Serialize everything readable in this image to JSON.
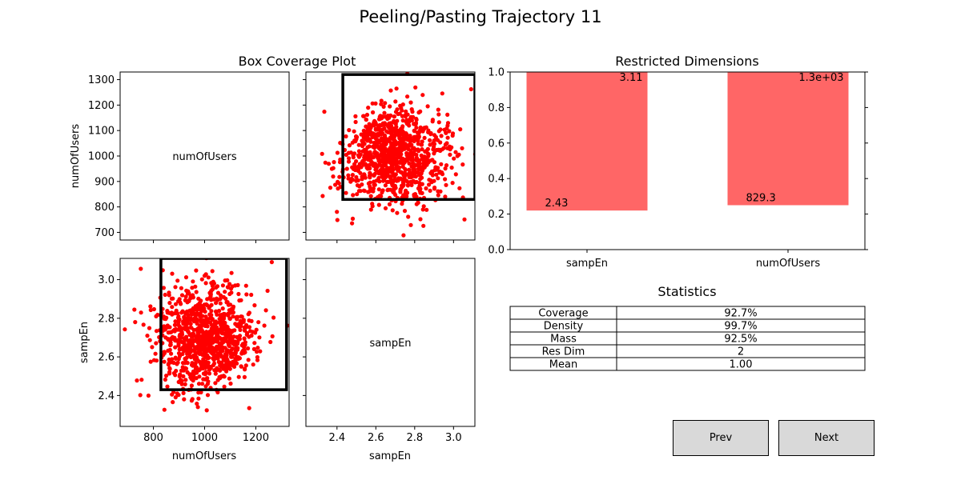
{
  "figure": {
    "title": "Peeling/Pasting Trajectory 11"
  },
  "buttons": {
    "prev_label": "Prev",
    "next_label": "Next"
  },
  "colors": {
    "points": "#ff0000",
    "bars": "#ff6666",
    "box": "#000000",
    "button_bg": "#d9d9d9"
  },
  "chart_data": [
    {
      "type": "scatter",
      "title": "Box Coverage Plot",
      "panels": [
        {
          "kind": "label",
          "text": "numOfUsers",
          "ylabel": "numOfUsers",
          "ylim": [
            670,
            1330
          ],
          "yticks": [
            700,
            800,
            900,
            1000,
            1100,
            1200,
            1300
          ]
        },
        {
          "kind": "scatter",
          "x_var": "sampEn",
          "y_var": "numOfUsers",
          "xlim": [
            2.24,
            3.11
          ],
          "ylim": [
            670,
            1330
          ],
          "box": {
            "x": [
              2.43,
              3.11
            ],
            "y": [
              829.3,
              1320
            ]
          }
        },
        {
          "kind": "scatter",
          "x_var": "numOfUsers",
          "y_var": "sampEn",
          "xlim": [
            670,
            1330
          ],
          "ylim": [
            2.24,
            3.11
          ],
          "box": {
            "x": [
              829.3,
              1320
            ],
            "y": [
              2.43,
              3.11
            ]
          },
          "xlabel": "numOfUsers",
          "ylabel": "sampEn",
          "xticks": [
            800,
            1000,
            1200
          ],
          "yticks": [
            2.4,
            2.6,
            2.8,
            3.0
          ]
        },
        {
          "kind": "label",
          "text": "sampEn",
          "xlabel": "sampEn",
          "xlim": [
            2.24,
            3.11
          ],
          "xticks": [
            2.4,
            2.6,
            2.8,
            3.0
          ]
        }
      ],
      "point_cloud": {
        "n": 1000,
        "mean_numOfUsers": 1000,
        "sd_numOfUsers": 100,
        "mean_sampEn": 2.7,
        "sd_sampEn": 0.13
      }
    },
    {
      "type": "bar",
      "title": "Restricted Dimensions",
      "categories": [
        "sampEn",
        "numOfUsers"
      ],
      "bottoms": [
        0.22,
        0.25
      ],
      "tops": [
        1.0,
        1.0
      ],
      "low_labels": [
        "2.43",
        "829.3"
      ],
      "high_labels": [
        "3.11",
        "1.3e+03"
      ],
      "ylim": [
        0,
        1
      ],
      "yticks": [
        0.0,
        0.2,
        0.4,
        0.6,
        0.8,
        1.0
      ]
    },
    {
      "type": "table",
      "title": "Statistics",
      "rows": [
        [
          "Coverage",
          "92.7%"
        ],
        [
          "Density",
          "99.7%"
        ],
        [
          "Mass",
          "92.5%"
        ],
        [
          "Res Dim",
          "2"
        ],
        [
          "Mean",
          "1.00"
        ]
      ]
    }
  ]
}
